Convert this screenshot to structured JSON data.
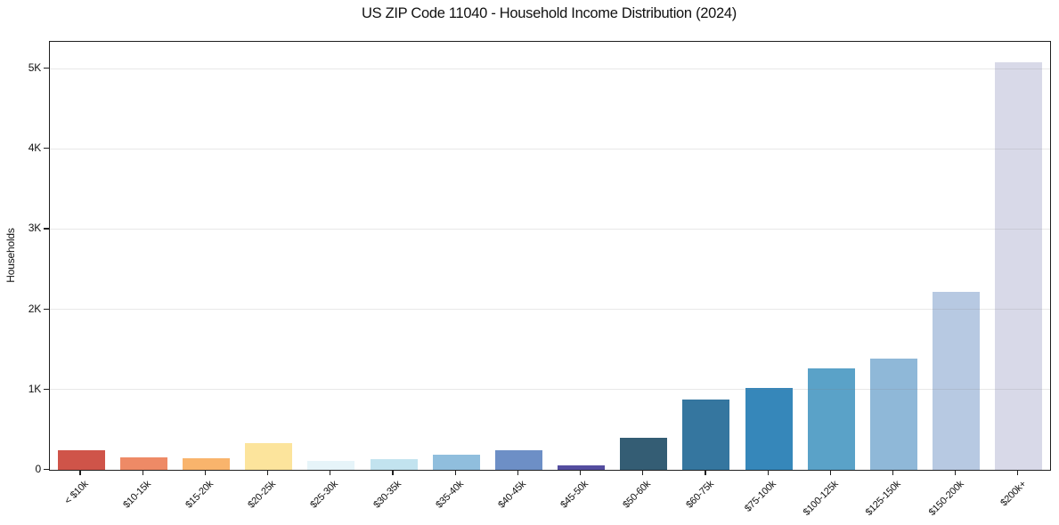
{
  "chart_data": {
    "type": "bar",
    "title": "US ZIP Code 11040 - Household Income Distribution (2024)",
    "xlabel": "",
    "ylabel": "Households",
    "categories": [
      "< $10k",
      "$10-15k",
      "$15-20k",
      "$20-25k",
      "$25-30k",
      "$30-35k",
      "$35-40k",
      "$40-45k",
      "$45-50k",
      "$50-60k",
      "$60-75k",
      "$75-100k",
      "$100-125k",
      "$125-150k",
      "$150-200k",
      "$200k+"
    ],
    "values": [
      245,
      150,
      145,
      330,
      110,
      130,
      190,
      240,
      60,
      400,
      880,
      1020,
      1260,
      1390,
      2220,
      5080
    ],
    "bar_colors": [
      "#cf5449",
      "#ee8a66",
      "#f9b46c",
      "#fce49c",
      "#e6f4f9",
      "#c2e3ef",
      "#90bedd",
      "#6d8fc6",
      "#544da0",
      "#345d74",
      "#35769f",
      "#3687ba",
      "#5aa2c8",
      "#8fb8d8",
      "#b7c9e2",
      "#d8d9e8"
    ],
    "ylim": [
      0,
      5334
    ],
    "yticks": {
      "values": [
        0,
        1000,
        2000,
        3000,
        4000,
        5000
      ],
      "labels": [
        "0",
        "1K",
        "2K",
        "3K",
        "4K",
        "5K"
      ]
    },
    "grid": "horizontal",
    "legend": "none",
    "background_color": "#ffffff",
    "axis_color": "#1f1f1f"
  }
}
